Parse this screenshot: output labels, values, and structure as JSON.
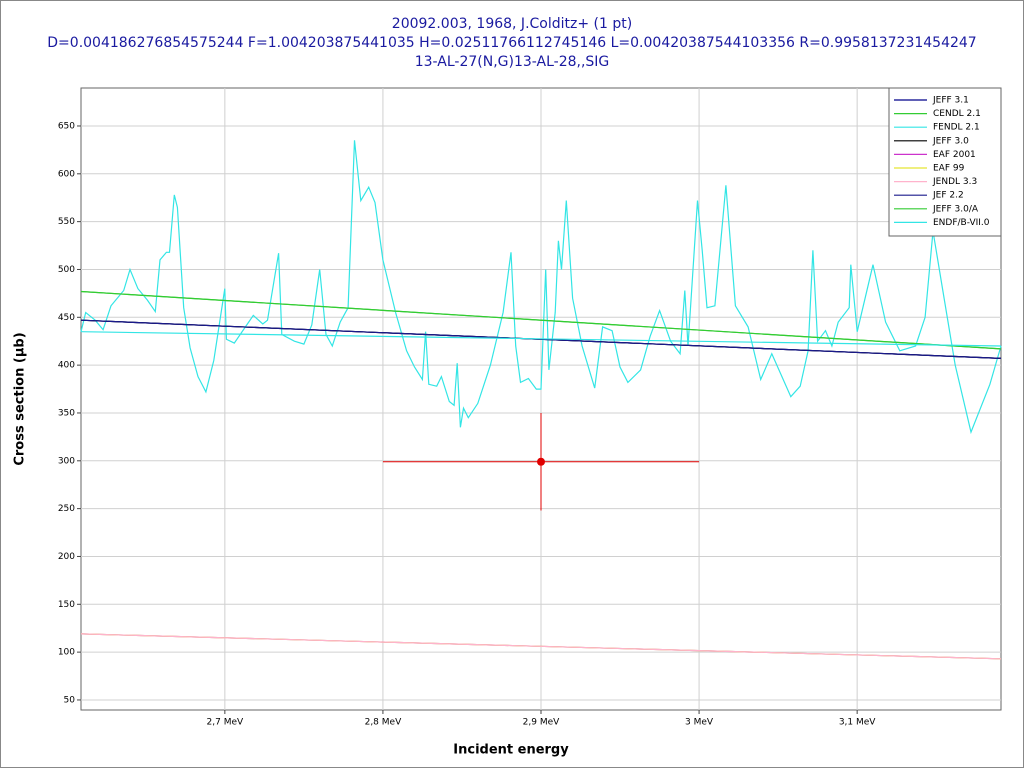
{
  "chart_data": {
    "type": "line",
    "title": "20092.003, 1968, J.Colditz+ (1 pt)",
    "subtitle": "D=0.004186276854575244 F=1.004203875441035 H=0.02511766112745146 L=0.00420387544103356 R=0.9958137231454247",
    "reaction": "13-AL-27(N,G)13-AL-28,,SIG",
    "xlabel": "Incident energy",
    "ylabel": "Cross section (µb)",
    "xlim": [
      2.609,
      3.191
    ],
    "ylim": [
      39.5,
      689.7
    ],
    "xticks": [
      {
        "value": 2.7,
        "label": "2,7 MeV"
      },
      {
        "value": 2.8,
        "label": "2,8 MeV"
      },
      {
        "value": 2.9,
        "label": "2,9 MeV"
      },
      {
        "value": 3.0,
        "label": "3 MeV"
      },
      {
        "value": 3.1,
        "label": "3,1 MeV"
      }
    ],
    "yticks": [
      50,
      100,
      150,
      200,
      250,
      300,
      350,
      400,
      450,
      500,
      550,
      600,
      650
    ],
    "grid": true,
    "legend": "upper right",
    "series": [
      {
        "name": "JEFF 3.1",
        "color": "#00008b",
        "x": [
          2.609,
          3.191
        ],
        "values": [
          447,
          407
        ]
      },
      {
        "name": "CENDL 2.1",
        "color": "#33cc33",
        "x": [
          2.609,
          3.191
        ],
        "values": [
          477,
          417
        ]
      },
      {
        "name": "FENDL 2.1",
        "color": "#33e5e5",
        "x": [
          2.609,
          2.612,
          2.618,
          2.623,
          2.628,
          2.636,
          2.64,
          2.645,
          2.651,
          2.656,
          2.659,
          2.663,
          2.665,
          2.668,
          2.67,
          2.674,
          2.678,
          2.683,
          2.688,
          2.693,
          2.7,
          2.701,
          2.706,
          2.713,
          2.718,
          2.724,
          2.727,
          2.734,
          2.736,
          2.744,
          2.75,
          2.755,
          2.76,
          2.764,
          2.768,
          2.773,
          2.778,
          2.782,
          2.786,
          2.791,
          2.795,
          2.8,
          2.808,
          2.815,
          2.82,
          2.825,
          2.827,
          2.829,
          2.834,
          2.837,
          2.842,
          2.845,
          2.847,
          2.849,
          2.851,
          2.854,
          2.86,
          2.868,
          2.876,
          2.881,
          2.884,
          2.887,
          2.892,
          2.897,
          2.9,
          2.903,
          2.905,
          2.909,
          2.911,
          2.913,
          2.916,
          2.92,
          2.926,
          2.934,
          2.939,
          2.945,
          2.95,
          2.955,
          2.963,
          2.969,
          2.975,
          2.982,
          2.988,
          2.991,
          2.993,
          2.999,
          3.002,
          3.005,
          3.01,
          3.017,
          3.023,
          3.031,
          3.039,
          3.046,
          3.058,
          3.064,
          3.069,
          3.072,
          3.075,
          3.08,
          3.084,
          3.088,
          3.095,
          3.096,
          3.1,
          3.11,
          3.118,
          3.127,
          3.137,
          3.143,
          3.148,
          3.154,
          3.162,
          3.172,
          3.184,
          3.191
        ],
        "values": [
          435,
          455,
          447,
          437,
          462,
          478,
          500,
          480,
          468,
          456,
          510,
          518,
          518,
          578,
          565,
          460,
          418,
          388,
          372,
          405,
          480,
          427,
          423,
          440,
          452,
          443,
          447,
          517,
          432,
          425,
          422,
          442,
          500,
          432,
          420,
          445,
          460,
          635,
          572,
          586,
          570,
          510,
          455,
          415,
          398,
          385,
          435,
          380,
          378,
          388,
          362,
          358,
          402,
          335,
          355,
          345,
          360,
          400,
          455,
          518,
          420,
          382,
          386,
          375,
          375,
          500,
          395,
          455,
          530,
          500,
          572,
          470,
          420,
          376,
          440,
          436,
          398,
          382,
          395,
          430,
          457,
          425,
          412,
          478,
          420,
          572,
          520,
          460,
          462,
          588,
          462,
          440,
          385,
          412,
          367,
          378,
          415,
          520,
          425,
          436,
          420,
          445,
          460,
          505,
          435,
          505,
          445,
          415,
          420,
          450,
          540,
          480,
          400,
          330,
          380,
          420
        ]
      },
      {
        "name": "JEFF 3.0",
        "color": "#000000",
        "x": [
          2.609,
          3.191
        ],
        "values": [
          447,
          407
        ]
      },
      {
        "name": "EAF 2001",
        "color": "#cc33cc",
        "x": [
          2.609,
          3.191
        ],
        "values": [
          119,
          93
        ]
      },
      {
        "name": "EAF 99",
        "color": "#e5e533",
        "x": [
          2.609,
          3.191
        ],
        "values": [
          119,
          93
        ]
      },
      {
        "name": "JENDL 3.3",
        "color": "#ffb3cc",
        "x": [
          2.609,
          3.191
        ],
        "values": [
          119,
          93
        ]
      },
      {
        "name": "JEF 2.2",
        "color": "#1a1a8c",
        "x": [
          2.609,
          3.191
        ],
        "values": [
          447,
          407
        ]
      },
      {
        "name": "JEFF 3.0/A",
        "color": "#33cc33",
        "x": [
          2.609,
          3.191
        ],
        "values": [
          477,
          417
        ]
      },
      {
        "name": "ENDF/B-VII.0",
        "color": "#33e5e5",
        "x": [
          2.609,
          3.191
        ],
        "values": [
          435,
          420
        ]
      }
    ],
    "points": {
      "color": "#e00000",
      "x": [
        2.9
      ],
      "values": [
        299
      ],
      "xerr": [
        0.1
      ],
      "yerr": [
        51
      ]
    }
  }
}
